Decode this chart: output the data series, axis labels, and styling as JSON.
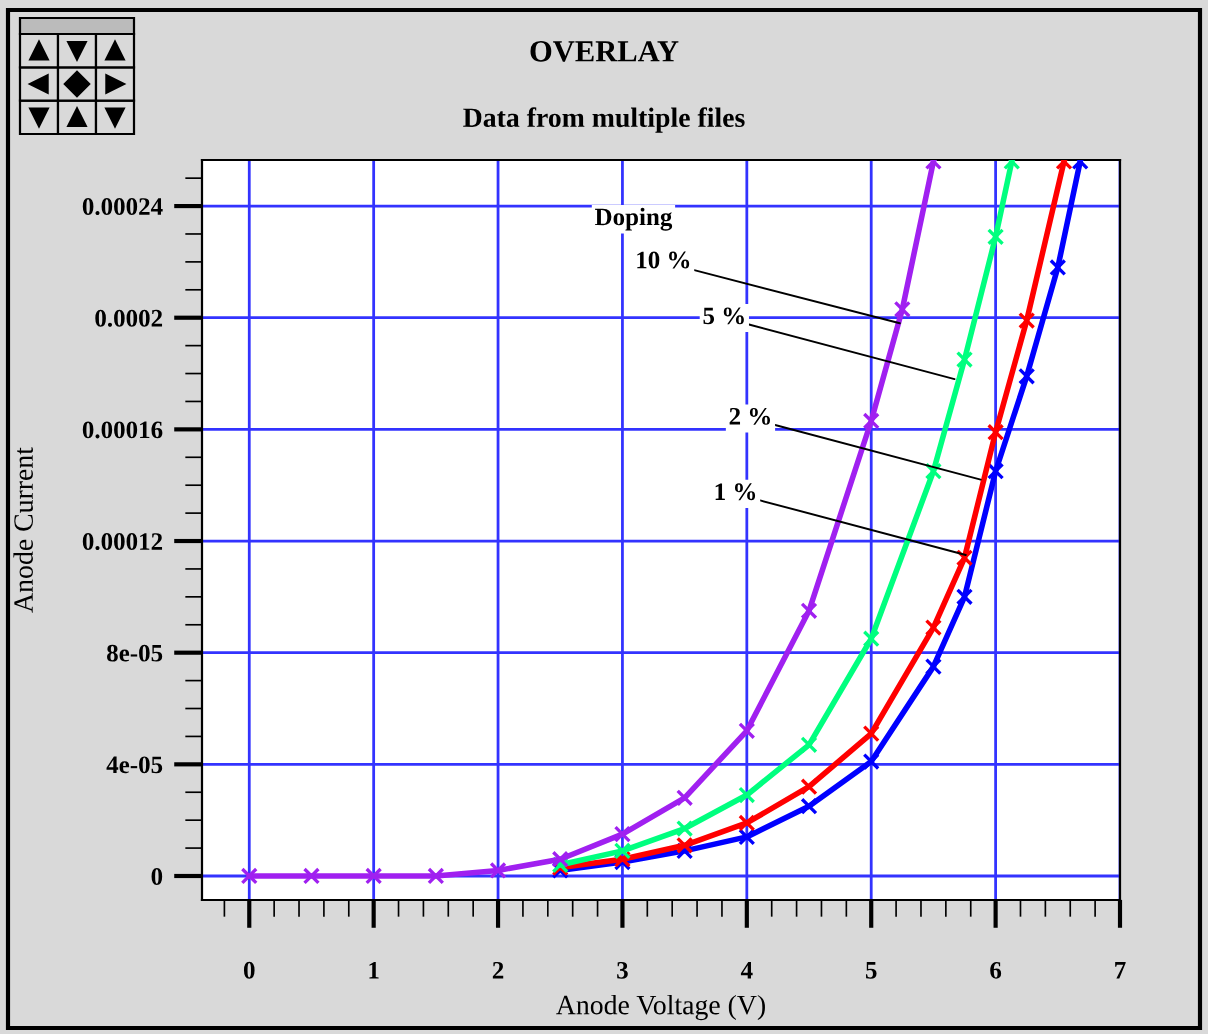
{
  "chart_data": {
    "type": "line",
    "title": "OVERLAY",
    "subtitle": "Data from multiple files",
    "xlabel": "Anode Voltage (V)",
    "ylabel": "Anode Current",
    "xlim": [
      -0.38,
      7
    ],
    "xticks": [
      0,
      1,
      2,
      3,
      4,
      5,
      6,
      7
    ],
    "ylim": [
      -8.6e-06,
      0.0002565
    ],
    "yticks": [
      0,
      {
        "value": 4e-05,
        "label": "4e-05"
      },
      {
        "value": 8e-05,
        "label": "8e-05"
      },
      {
        "value": 0.00012,
        "label": "0.00012"
      },
      {
        "value": 0.00016,
        "label": "0.00016"
      },
      {
        "value": 0.0002,
        "label": "0.0002"
      },
      {
        "value": 0.00024,
        "label": "0.00024"
      }
    ],
    "grid": true,
    "legend": false,
    "marker": "cross",
    "line_style": "solid",
    "series": [
      {
        "color": "#a020f0",
        "x": [
          0,
          0.5,
          1,
          1.5,
          2,
          2.5,
          3,
          3.5,
          4,
          4.5,
          5,
          5.25,
          5.5
        ],
        "values": [
          0,
          0,
          0,
          0,
          2e-06,
          6e-06,
          1.5e-05,
          2.8e-05,
          5.2e-05,
          9.5e-05,
          0.000163,
          0.000203,
          0.000256
        ]
      },
      {
        "color": "#00ff7f",
        "x": [
          2.5,
          3,
          3.5,
          4,
          4.5,
          5,
          5.5,
          5.75,
          6,
          6.13
        ],
        "values": [
          4e-06,
          9e-06,
          1.7e-05,
          2.9e-05,
          4.7e-05,
          8.5e-05,
          0.000145,
          0.000185,
          0.000229,
          0.000256
        ]
      },
      {
        "color": "#ff0000",
        "x": [
          2.5,
          3,
          3.5,
          4,
          4.5,
          5,
          5.5,
          5.75,
          6,
          6.25,
          6.55
        ],
        "values": [
          3e-06,
          6e-06,
          1.1e-05,
          1.9e-05,
          3.2e-05,
          5.1e-05,
          8.9e-05,
          0.000114,
          0.000159,
          0.000199,
          0.000256
        ]
      },
      {
        "color": "#0000ff",
        "x": [
          2.5,
          3,
          3.5,
          4,
          4.5,
          5,
          5.5,
          5.75,
          6,
          6.25,
          6.5,
          6.68
        ],
        "values": [
          2e-06,
          5e-06,
          9e-06,
          1.4e-05,
          2.5e-05,
          4.1e-05,
          7.5e-05,
          0.0001,
          0.000145,
          0.000179,
          0.000218,
          0.000256
        ]
      }
    ],
    "annotations": [
      {
        "text": "Doping"
      },
      {
        "text": "10 %",
        "x": 5.23,
        "y": 0.000198
      },
      {
        "text": "5 %",
        "x": 5.67,
        "y": 0.000178
      },
      {
        "text": "2 %",
        "x": 5.88,
        "y": 0.000142
      },
      {
        "text": "1 %",
        "x": 5.76,
        "y": 0.000115
      }
    ]
  }
}
